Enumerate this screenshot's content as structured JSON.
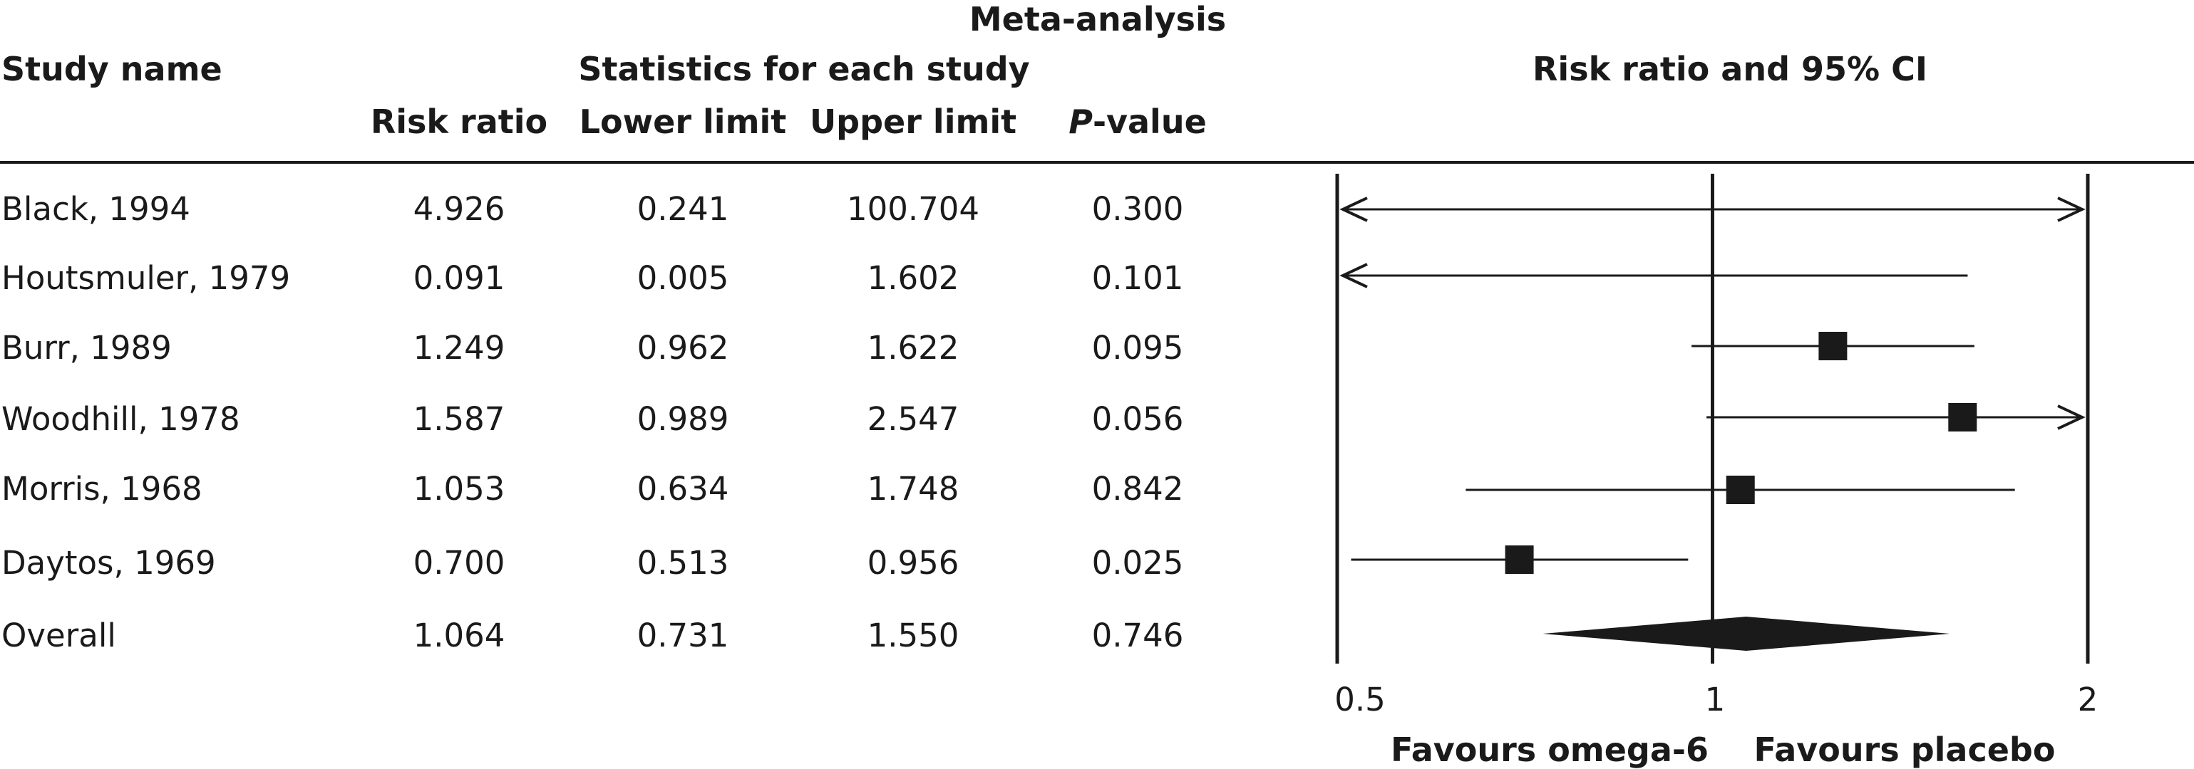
{
  "title": "Meta-analysis",
  "headers": {
    "study_name": "Study name",
    "stats_group": "Statistics for each study",
    "plot_group": "Risk ratio and 95% CI",
    "risk_ratio": "Risk ratio",
    "lower_limit": "Lower limit",
    "upper_limit": "Upper limit",
    "p_value_italic": "P",
    "p_value_rest": "-value"
  },
  "rows": [
    {
      "study": "Black, 1994",
      "rr": "4.926",
      "lower": "0.241",
      "upper": "100.704",
      "p": "0.300"
    },
    {
      "study": "Houtsmuler, 1979",
      "rr": "0.091",
      "lower": "0.005",
      "upper": "1.602",
      "p": "0.101"
    },
    {
      "study": "Burr, 1989",
      "rr": "1.249",
      "lower": "0.962",
      "upper": "1.622",
      "p": "0.095"
    },
    {
      "study": "Woodhill, 1978",
      "rr": "1.587",
      "lower": "0.989",
      "upper": "2.547",
      "p": "0.056"
    },
    {
      "study": "Morris, 1968",
      "rr": "1.053",
      "lower": "0.634",
      "upper": "1.748",
      "p": "0.842"
    },
    {
      "study": "Daytos, 1969",
      "rr": "0.700",
      "lower": "0.513",
      "upper": "0.956",
      "p": "0.025"
    },
    {
      "study": "Overall",
      "rr": "1.064",
      "lower": "0.731",
      "upper": "1.550",
      "p": "0.746"
    }
  ],
  "axis": {
    "tick_labels": [
      "0.5",
      "1",
      "2"
    ],
    "favours_left": "Favours omega-6",
    "favours_right": "Favours placebo"
  },
  "chart_data": {
    "type": "forest",
    "scale": "log",
    "xlim": [
      0.5,
      2
    ],
    "ticks": [
      0.5,
      1,
      2
    ],
    "null_line": 1,
    "studies": [
      {
        "name": "Black, 1994",
        "rr": 4.926,
        "lower": 0.241,
        "upper": 100.704
      },
      {
        "name": "Houtsmuler, 1979",
        "rr": 0.091,
        "lower": 0.005,
        "upper": 1.602
      },
      {
        "name": "Burr, 1989",
        "rr": 1.249,
        "lower": 0.962,
        "upper": 1.622
      },
      {
        "name": "Woodhill, 1978",
        "rr": 1.587,
        "lower": 0.989,
        "upper": 2.547
      },
      {
        "name": "Morris, 1968",
        "rr": 1.053,
        "lower": 0.634,
        "upper": 1.748
      },
      {
        "name": "Daytos, 1969",
        "rr": 0.7,
        "lower": 0.513,
        "upper": 0.956
      }
    ],
    "overall": {
      "name": "Overall",
      "rr": 1.064,
      "lower": 0.731,
      "upper": 1.55
    },
    "color": "#1a1a1a"
  }
}
